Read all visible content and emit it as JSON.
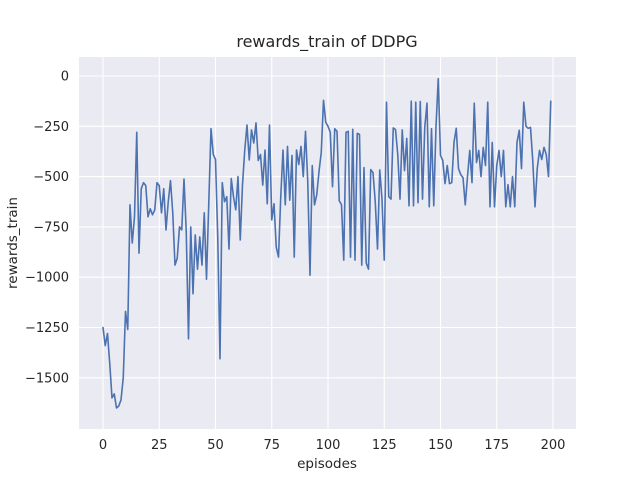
{
  "window": {
    "title": "rewards_train of DDPG"
  },
  "colors": {
    "figure_bg": "#ffffff",
    "plot_bg": "#eaeaf2",
    "grid": "#ffffff",
    "line": "#4c72b0",
    "text": "#262626"
  },
  "chart_data": {
    "type": "line",
    "title": "rewards_train of DDPG",
    "xlabel": "episodes",
    "ylabel": "rewards_train",
    "legend": null,
    "grid": true,
    "x_start": 0,
    "x_step": 1,
    "xlim": [
      -10.7,
      210.2
    ],
    "ylim": [
      -1754,
      94
    ],
    "x_ticks": [
      0,
      25,
      50,
      75,
      100,
      125,
      150,
      175,
      200
    ],
    "x_tick_labels": [
      "0",
      "25",
      "50",
      "75",
      "100",
      "125",
      "150",
      "175",
      "200"
    ],
    "y_ticks": [
      0,
      -250,
      -500,
      -750,
      -1000,
      -1250,
      -1500
    ],
    "y_tick_labels": [
      "0",
      "−250",
      "−500",
      "−750",
      "−1000",
      "−1250",
      "−1500"
    ],
    "series_name": "rewards_train of DDPG",
    "values": [
      -1250,
      -1340,
      -1280,
      -1430,
      -1600,
      -1580,
      -1650,
      -1640,
      -1610,
      -1500,
      -1170,
      -1260,
      -640,
      -830,
      -700,
      -280,
      -880,
      -560,
      -530,
      -545,
      -700,
      -660,
      -690,
      -665,
      -530,
      -545,
      -680,
      -560,
      -765,
      -625,
      -520,
      -680,
      -940,
      -905,
      -750,
      -765,
      -512,
      -775,
      -1306,
      -750,
      -1082,
      -790,
      -960,
      -800,
      -940,
      -680,
      -1010,
      -635,
      -262,
      -390,
      -415,
      -800,
      -1405,
      -530,
      -625,
      -600,
      -860,
      -510,
      -600,
      -665,
      -500,
      -815,
      -540,
      -368,
      -244,
      -417,
      -268,
      -333,
      -233,
      -420,
      -390,
      -542,
      -368,
      -635,
      -244,
      -715,
      -635,
      -850,
      -900,
      -600,
      -368,
      -640,
      -350,
      -617,
      -395,
      -900,
      -368,
      -440,
      -350,
      -500,
      -275,
      -525,
      -990,
      -445,
      -640,
      -590,
      -475,
      -380,
      -121,
      -230,
      -250,
      -280,
      -550,
      -262,
      -275,
      -620,
      -640,
      -915,
      -280,
      -275,
      -900,
      -265,
      -915,
      -285,
      -290,
      -940,
      -455,
      -930,
      -960,
      -465,
      -480,
      -625,
      -860,
      -467,
      -612,
      -915,
      -130,
      -600,
      -612,
      -258,
      -266,
      -390,
      -612,
      -268,
      -470,
      -310,
      -645,
      -125,
      -645,
      -130,
      -630,
      -127,
      -612,
      -255,
      -135,
      -650,
      -262,
      -645,
      -250,
      -13,
      -395,
      -420,
      -535,
      -445,
      -535,
      -530,
      -330,
      -260,
      -460,
      -490,
      -505,
      -640,
      -500,
      -370,
      -530,
      -135,
      -430,
      -370,
      -500,
      -355,
      -445,
      -130,
      -650,
      -330,
      -650,
      -445,
      -370,
      -500,
      -370,
      -650,
      -540,
      -650,
      -500,
      -650,
      -330,
      -270,
      -460,
      -130,
      -250,
      -260,
      -255,
      -420,
      -650,
      -460,
      -370,
      -415,
      -355,
      -390,
      -500,
      -125
    ]
  }
}
